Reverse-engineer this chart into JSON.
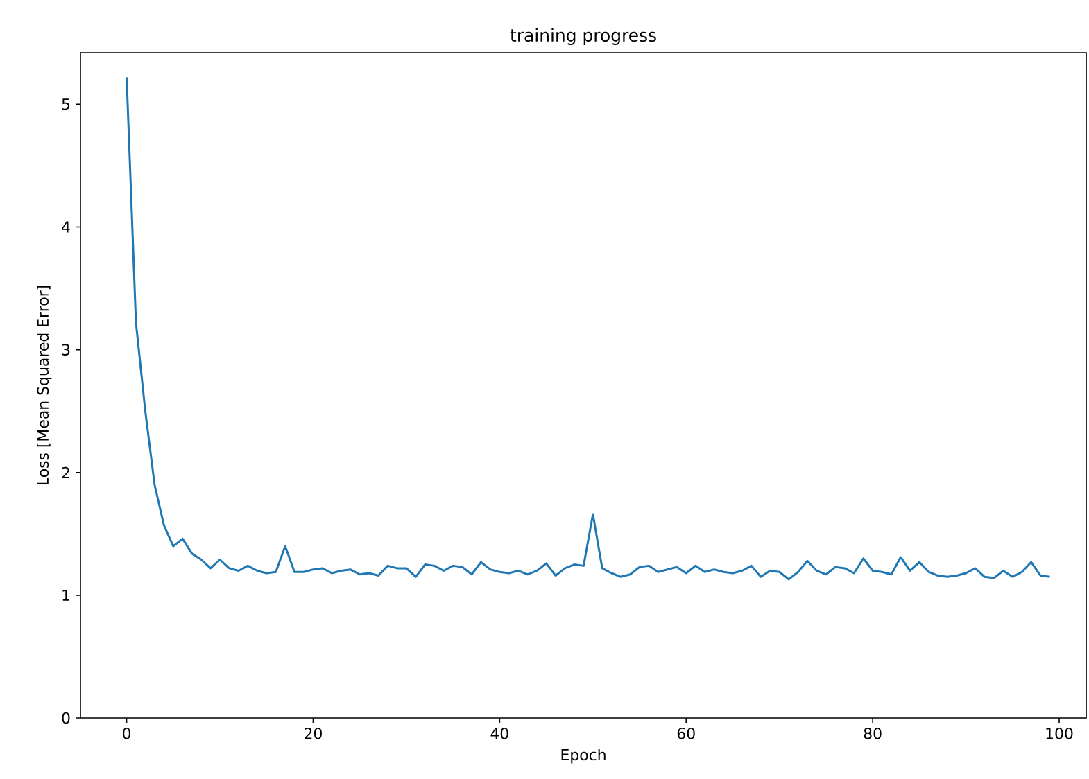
{
  "chart_data": {
    "type": "line",
    "title": "training progress",
    "xlabel": "Epoch",
    "ylabel": "Loss [Mean Squared Error]",
    "x": [
      0,
      1,
      2,
      3,
      4,
      5,
      6,
      7,
      8,
      9,
      10,
      11,
      12,
      13,
      14,
      15,
      16,
      17,
      18,
      19,
      20,
      21,
      22,
      23,
      24,
      25,
      26,
      27,
      28,
      29,
      30,
      31,
      32,
      33,
      34,
      35,
      36,
      37,
      38,
      39,
      40,
      41,
      42,
      43,
      44,
      45,
      46,
      47,
      48,
      49,
      50,
      51,
      52,
      53,
      54,
      55,
      56,
      57,
      58,
      59,
      60,
      61,
      62,
      63,
      64,
      65,
      66,
      67,
      68,
      69,
      70,
      71,
      72,
      73,
      74,
      75,
      76,
      77,
      78,
      79,
      80,
      81,
      82,
      83,
      84,
      85,
      86,
      87,
      88,
      89,
      90,
      91,
      92,
      93,
      94,
      95,
      96,
      97,
      98,
      99
    ],
    "series": [
      {
        "color": "#1f77b4",
        "values": [
          5.22,
          3.22,
          2.5,
          1.9,
          1.57,
          1.4,
          1.46,
          1.34,
          1.29,
          1.22,
          1.29,
          1.22,
          1.2,
          1.24,
          1.2,
          1.18,
          1.19,
          1.4,
          1.19,
          1.19,
          1.21,
          1.22,
          1.18,
          1.2,
          1.21,
          1.17,
          1.18,
          1.16,
          1.24,
          1.22,
          1.22,
          1.15,
          1.25,
          1.24,
          1.2,
          1.24,
          1.23,
          1.17,
          1.27,
          1.21,
          1.19,
          1.18,
          1.2,
          1.17,
          1.2,
          1.26,
          1.16,
          1.22,
          1.25,
          1.24,
          1.66,
          1.22,
          1.18,
          1.15,
          1.17,
          1.23,
          1.24,
          1.19,
          1.21,
          1.23,
          1.18,
          1.24,
          1.19,
          1.21,
          1.19,
          1.18,
          1.2,
          1.24,
          1.15,
          1.2,
          1.19,
          1.13,
          1.19,
          1.28,
          1.2,
          1.17,
          1.23,
          1.22,
          1.18,
          1.3,
          1.2,
          1.19,
          1.17,
          1.31,
          1.2,
          1.27,
          1.19,
          1.16,
          1.15,
          1.16,
          1.18,
          1.22,
          1.15,
          1.14,
          1.2,
          1.15,
          1.19,
          1.27,
          1.16,
          1.15
        ]
      }
    ],
    "xlim": [
      -4.95,
      102.9
    ],
    "ylim": [
      0,
      5.42
    ],
    "xticks": [
      0,
      20,
      40,
      60,
      80,
      100
    ],
    "yticks": [
      0,
      1,
      2,
      3,
      4,
      5
    ],
    "marker": "none",
    "line_style": "solid"
  }
}
